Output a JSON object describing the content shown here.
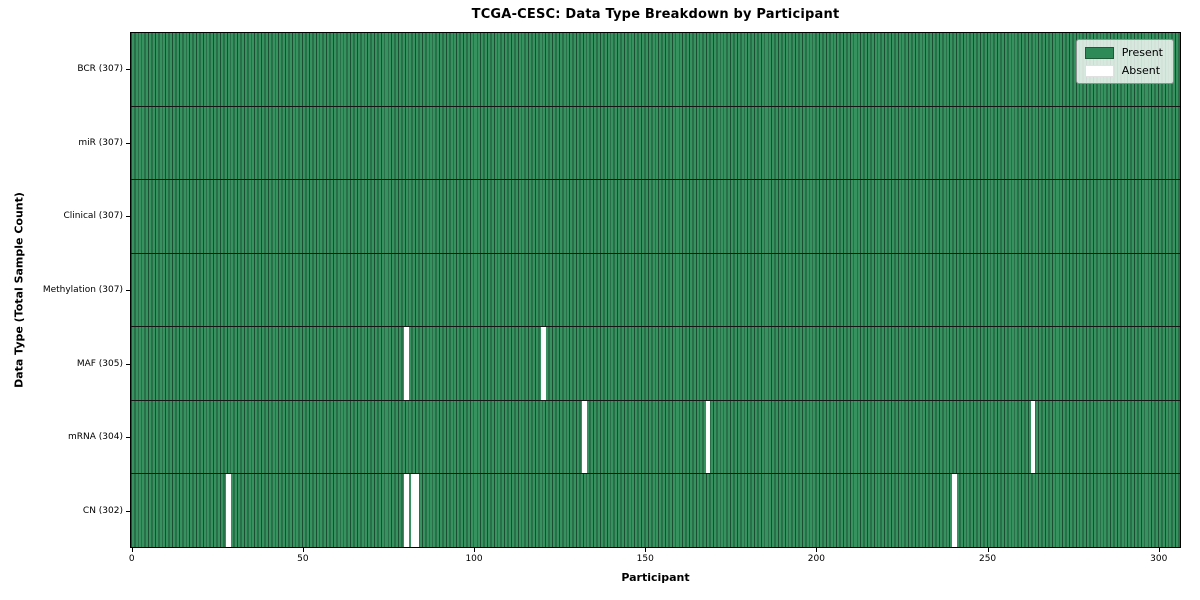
{
  "colors": {
    "present": "#36935f",
    "bar_edge": "#1c4e33",
    "absent": "#ffffff",
    "row_divider": "#161616",
    "plot_border": "#000000",
    "legend_present_swatch": "#2e8b57",
    "legend_absent_swatch": "#ffffff"
  },
  "chart_data": {
    "type": "heatmap",
    "title": "TCGA-CESC: Data Type Breakdown by Participant",
    "xlabel": "Participant",
    "ylabel": "Data Type (Total Sample Count)",
    "n_participants": 307,
    "x_ticks": [
      0,
      50,
      100,
      150,
      200,
      250,
      300
    ],
    "grid": false,
    "legend": {
      "position": "upper right",
      "entries": [
        {
          "label": "Present",
          "color": "#2e8b57"
        },
        {
          "label": "Absent",
          "color": "#ffffff"
        }
      ]
    },
    "rows": [
      {
        "data_type": "BCR",
        "label": "BCR (307)",
        "present_count": 307,
        "absent_participants": []
      },
      {
        "data_type": "miR",
        "label": "miR (307)",
        "present_count": 307,
        "absent_participants": []
      },
      {
        "data_type": "Clinical",
        "label": "Clinical (307)",
        "present_count": 307,
        "absent_participants": []
      },
      {
        "data_type": "Methylation",
        "label": "Methylation (307)",
        "present_count": 307,
        "absent_participants": []
      },
      {
        "data_type": "MAF",
        "label": "MAF (305)",
        "present_count": 305,
        "absent_participants": [
          80,
          120
        ]
      },
      {
        "data_type": "mRNA",
        "label": "mRNA (304)",
        "present_count": 304,
        "absent_participants": [
          132,
          168,
          263
        ]
      },
      {
        "data_type": "CN",
        "label": "CN (302)",
        "present_count": 302,
        "absent_participants": [
          28,
          80,
          82,
          83,
          240
        ]
      }
    ]
  }
}
